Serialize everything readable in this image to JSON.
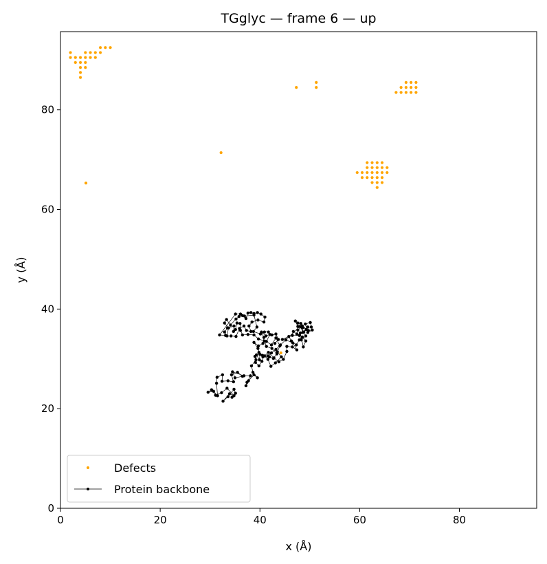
{
  "chart_data": {
    "type": "scatter",
    "title": "TGglyc — frame 6 — up",
    "xlabel": "x (Å)",
    "ylabel": "y (Å)",
    "xlim": [
      0,
      95.5
    ],
    "ylim": [
      0,
      95.7
    ],
    "xticks": [
      0,
      20,
      40,
      60,
      80
    ],
    "yticks": [
      0,
      20,
      40,
      60,
      80
    ],
    "grid": false,
    "legend_position": "lower-left",
    "series": [
      {
        "name": "Defects",
        "kind": "scatter",
        "color": "#ffa500",
        "points": [
          [
            2,
            91.5
          ],
          [
            2,
            90.5
          ],
          [
            3,
            90.5
          ],
          [
            4,
            90.5
          ],
          [
            5,
            90.5
          ],
          [
            6,
            90.5
          ],
          [
            7,
            90.5
          ],
          [
            3,
            89.5
          ],
          [
            4,
            89.5
          ],
          [
            5,
            89.5
          ],
          [
            4,
            88.5
          ],
          [
            5,
            88.5
          ],
          [
            4,
            87.5
          ],
          [
            4,
            86.5
          ],
          [
            5,
            91.5
          ],
          [
            6,
            91.5
          ],
          [
            7,
            91.5
          ],
          [
            8,
            91.5
          ],
          [
            8,
            92.5
          ],
          [
            9,
            92.5
          ],
          [
            10,
            92.5
          ],
          [
            47.3,
            84.5
          ],
          [
            51.3,
            85.5
          ],
          [
            51.3,
            84.5
          ],
          [
            69.3,
            85.5
          ],
          [
            70.3,
            85.5
          ],
          [
            71.3,
            85.5
          ],
          [
            68.3,
            84.5
          ],
          [
            69.3,
            84.5
          ],
          [
            70.3,
            84.5
          ],
          [
            71.3,
            84.5
          ],
          [
            67.3,
            83.5
          ],
          [
            68.3,
            83.5
          ],
          [
            69.3,
            83.5
          ],
          [
            70.3,
            83.5
          ],
          [
            71.3,
            83.5
          ],
          [
            32.2,
            71.4
          ],
          [
            61.5,
            69.4
          ],
          [
            62.5,
            69.4
          ],
          [
            63.5,
            69.4
          ],
          [
            64.5,
            69.4
          ],
          [
            61.5,
            68.4
          ],
          [
            62.5,
            68.4
          ],
          [
            63.5,
            68.4
          ],
          [
            64.5,
            68.4
          ],
          [
            65.5,
            68.4
          ],
          [
            59.5,
            67.4
          ],
          [
            60.5,
            67.4
          ],
          [
            61.5,
            67.4
          ],
          [
            62.5,
            67.4
          ],
          [
            63.5,
            67.4
          ],
          [
            64.5,
            67.4
          ],
          [
            65.5,
            67.4
          ],
          [
            60.5,
            66.4
          ],
          [
            61.5,
            66.4
          ],
          [
            62.5,
            66.4
          ],
          [
            63.5,
            66.4
          ],
          [
            64.5,
            66.4
          ],
          [
            62.5,
            65.4
          ],
          [
            63.5,
            65.4
          ],
          [
            64.5,
            65.4
          ],
          [
            63.5,
            64.4
          ],
          [
            5.1,
            65.3
          ],
          [
            44.2,
            31.2
          ]
        ]
      },
      {
        "name": "Protein backbone",
        "kind": "line-marker",
        "color": "#000000",
        "points": [
          [
            34.4,
            22.3
          ],
          [
            35.1,
            23.1
          ],
          [
            34.8,
            23.9
          ],
          [
            33.6,
            22.4
          ],
          [
            32.6,
            21.5
          ],
          [
            33.9,
            23.0
          ],
          [
            34.8,
            22.6
          ],
          [
            33.4,
            24.1
          ],
          [
            32.3,
            23.2
          ],
          [
            31.1,
            22.7
          ],
          [
            30.3,
            23.8
          ],
          [
            29.6,
            23.3
          ],
          [
            30.7,
            23.5
          ],
          [
            31.5,
            22.6
          ],
          [
            31.3,
            25.1
          ],
          [
            31.4,
            26.3
          ],
          [
            32.5,
            26.8
          ],
          [
            32.4,
            25.5
          ],
          [
            33.6,
            25.6
          ],
          [
            34.7,
            25.4
          ],
          [
            34.3,
            26.8
          ],
          [
            35.5,
            27.3
          ],
          [
            36.5,
            26.5
          ],
          [
            35.0,
            26.2
          ],
          [
            34.5,
            27.4
          ],
          [
            36.8,
            26.6
          ],
          [
            38.1,
            26.6
          ],
          [
            37.4,
            25.3
          ],
          [
            37.2,
            24.6
          ],
          [
            37.7,
            25.6
          ],
          [
            38.8,
            26.8
          ],
          [
            39.5,
            26.2
          ],
          [
            38.6,
            27.3
          ],
          [
            38.3,
            28.6
          ],
          [
            39.2,
            29.8
          ],
          [
            39.3,
            30.8
          ],
          [
            39.9,
            29.8
          ],
          [
            40.0,
            30.9
          ],
          [
            39.6,
            32.1
          ],
          [
            38.8,
            33.3
          ],
          [
            39.7,
            32.6
          ],
          [
            40.6,
            33.1
          ],
          [
            40.8,
            34.3
          ],
          [
            40.3,
            35.4
          ],
          [
            41.2,
            34.6
          ],
          [
            42.0,
            34.9
          ],
          [
            41.3,
            33.5
          ],
          [
            42.3,
            32.8
          ],
          [
            43.2,
            34.2
          ],
          [
            44.0,
            32.6
          ],
          [
            43.5,
            31.4
          ],
          [
            44.3,
            30.4
          ],
          [
            43.1,
            29.2
          ],
          [
            42.2,
            28.5
          ],
          [
            41.6,
            29.9
          ],
          [
            40.9,
            30.6
          ],
          [
            41.7,
            31.3
          ],
          [
            42.8,
            30.2
          ],
          [
            43.8,
            29.4
          ],
          [
            44.7,
            29.9
          ],
          [
            45.4,
            31.5
          ],
          [
            45.4,
            32.5
          ],
          [
            46.5,
            32.4
          ],
          [
            47.4,
            31.8
          ],
          [
            46.6,
            33.2
          ],
          [
            45.2,
            33.8
          ],
          [
            44.5,
            33.9
          ],
          [
            45.8,
            34.5
          ],
          [
            46.3,
            33.6
          ],
          [
            47.3,
            32.8
          ],
          [
            47.9,
            33.8
          ],
          [
            48.5,
            34.4
          ],
          [
            49.2,
            33.6
          ],
          [
            48.7,
            32.4
          ],
          [
            48.1,
            35.2
          ],
          [
            48.8,
            35.4
          ],
          [
            49.3,
            35.9
          ],
          [
            48.5,
            36.3
          ],
          [
            47.6,
            36.5
          ],
          [
            47.1,
            37.6
          ],
          [
            47.6,
            37.2
          ],
          [
            48.2,
            37.1
          ],
          [
            48.6,
            36.3
          ],
          [
            48.6,
            35.3
          ],
          [
            49.6,
            36.4
          ],
          [
            50.3,
            36.4
          ],
          [
            50.1,
            37.3
          ],
          [
            49.1,
            37.0
          ],
          [
            49.6,
            35.3
          ],
          [
            50.5,
            35.8
          ],
          [
            49.7,
            35.7
          ],
          [
            48.5,
            36.6
          ],
          [
            47.6,
            35.8
          ],
          [
            47.4,
            35.0
          ],
          [
            46.7,
            35.5
          ],
          [
            46.5,
            34.7
          ],
          [
            47.9,
            34.7
          ],
          [
            48.3,
            33.8
          ],
          [
            49.2,
            34.6
          ],
          [
            48.0,
            36.5
          ],
          [
            44.1,
            32.8
          ],
          [
            43.2,
            31.9
          ],
          [
            42.3,
            31.2
          ],
          [
            41.6,
            30.6
          ],
          [
            40.5,
            30.7
          ],
          [
            39.8,
            31.3
          ],
          [
            39.0,
            30.5
          ],
          [
            39.1,
            29.3
          ],
          [
            39.8,
            28.6
          ],
          [
            40.4,
            29.5
          ],
          [
            40.6,
            30.4
          ],
          [
            41.9,
            30.4
          ],
          [
            42.7,
            30.1
          ],
          [
            43.4,
            31.0
          ],
          [
            42.4,
            32.1
          ],
          [
            41.3,
            32.5
          ],
          [
            40.9,
            33.6
          ],
          [
            39.7,
            34.0
          ],
          [
            38.8,
            34.8
          ],
          [
            37.6,
            34.9
          ],
          [
            36.5,
            34.8
          ],
          [
            36.1,
            35.7
          ],
          [
            36.0,
            37.1
          ],
          [
            35.4,
            37.2
          ],
          [
            35.1,
            35.9
          ],
          [
            34.7,
            35.5
          ],
          [
            34.8,
            36.6
          ],
          [
            33.5,
            36.2
          ],
          [
            32.9,
            35.4
          ],
          [
            33.4,
            34.6
          ],
          [
            33.7,
            36.2
          ],
          [
            32.9,
            37.2
          ],
          [
            33.3,
            37.9
          ],
          [
            34.1,
            36.8
          ],
          [
            35.2,
            38.0
          ],
          [
            35.8,
            38.5
          ],
          [
            36.5,
            38.7
          ],
          [
            37.2,
            38.1
          ],
          [
            37.6,
            39.2
          ],
          [
            38.2,
            39.3
          ],
          [
            38.8,
            39.1
          ],
          [
            39.5,
            39.3
          ],
          [
            40.2,
            39.0
          ],
          [
            41.0,
            38.4
          ],
          [
            40.8,
            37.4
          ],
          [
            39.6,
            37.8
          ],
          [
            38.4,
            37.4
          ],
          [
            37.8,
            36.6
          ],
          [
            38.2,
            35.5
          ],
          [
            37.3,
            35.7
          ],
          [
            36.8,
            36.6
          ],
          [
            35.9,
            36.1
          ],
          [
            35.2,
            34.5
          ],
          [
            34.2,
            34.6
          ],
          [
            33.1,
            34.7
          ],
          [
            31.9,
            34.8
          ],
          [
            35.1,
            39.0
          ],
          [
            36.1,
            39.0
          ],
          [
            36.9,
            38.6
          ],
          [
            38.8,
            38.8
          ],
          [
            39.4,
            36.4
          ],
          [
            38.7,
            35.5
          ],
          [
            40.1,
            35.0
          ],
          [
            40.9,
            35.4
          ],
          [
            41.7,
            35.4
          ],
          [
            42.4,
            34.8
          ],
          [
            43.2,
            35.0
          ],
          [
            43.7,
            33.9
          ],
          [
            43.0,
            33.1
          ]
        ]
      }
    ]
  }
}
